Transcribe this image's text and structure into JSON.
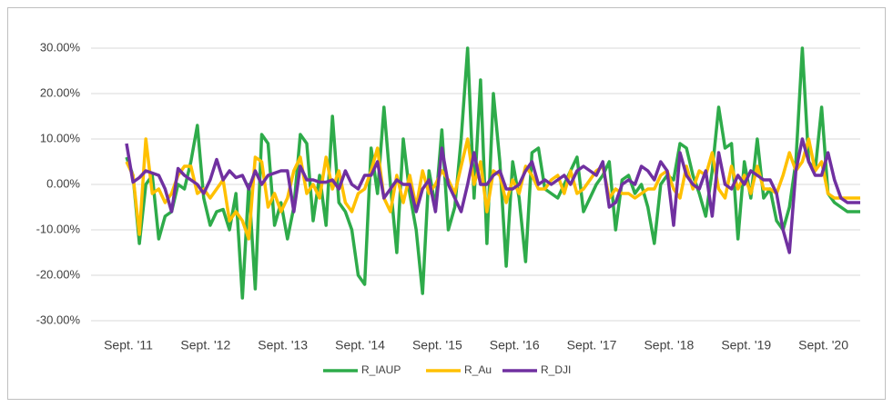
{
  "chart_data": {
    "type": "line",
    "categories": [
      "Sept. '11",
      null,
      null,
      null,
      null,
      null,
      null,
      null,
      null,
      null,
      null,
      null,
      "Sept. '12",
      null,
      null,
      null,
      null,
      null,
      null,
      null,
      null,
      null,
      null,
      null,
      "Sept. '13",
      null,
      null,
      null,
      null,
      null,
      null,
      null,
      null,
      null,
      null,
      null,
      "Sept. '14",
      null,
      null,
      null,
      null,
      null,
      null,
      null,
      null,
      null,
      null,
      null,
      "Sept. '15",
      null,
      null,
      null,
      null,
      null,
      null,
      null,
      null,
      null,
      null,
      null,
      "Sept. '16",
      null,
      null,
      null,
      null,
      null,
      null,
      null,
      null,
      null,
      null,
      null,
      "Sept. '17",
      null,
      null,
      null,
      null,
      null,
      null,
      null,
      null,
      null,
      null,
      null,
      "Sept. '18",
      null,
      null,
      null,
      null,
      null,
      null,
      null,
      null,
      null,
      null,
      null,
      "Sept. '19",
      null,
      null,
      null,
      null,
      null,
      null,
      null,
      null,
      null,
      null,
      null,
      "Sept. '20",
      null,
      null,
      null,
      null,
      null,
      null
    ],
    "series": [
      {
        "name": "R_IAUP",
        "color": "#2eab4a",
        "values": [
          6,
          2,
          -13,
          0,
          2,
          -12,
          -7,
          -6,
          0,
          -1,
          5,
          13,
          -3,
          -9,
          -6,
          -5.5,
          -10,
          -2,
          -25,
          0,
          -23,
          11,
          9,
          -9,
          -4,
          -12,
          -5,
          11,
          9,
          -8,
          2,
          -9,
          15,
          -4,
          -6,
          -10,
          -20,
          -22,
          8,
          -2,
          17,
          0,
          -15,
          10,
          -2,
          -10,
          -24,
          3,
          -5,
          12,
          -10,
          -5,
          10,
          30,
          -3,
          23,
          -13,
          20,
          5,
          -18,
          5,
          -3,
          -17,
          7,
          8,
          -1,
          -2,
          -3,
          0,
          3,
          6,
          -6,
          -3,
          0,
          2,
          5,
          -10,
          1,
          2,
          -2,
          0,
          -5,
          -13,
          0,
          2,
          1,
          9,
          8,
          2,
          -2,
          -7,
          3,
          17,
          8,
          9,
          -12,
          5,
          -3,
          10,
          -3,
          -1,
          -8,
          -10,
          -5,
          5,
          30,
          5,
          3,
          17,
          -2,
          -4,
          -5,
          -6,
          -6,
          -6
        ]
      },
      {
        "name": "R_Au",
        "color": "#ffc000",
        "values": [
          5,
          2,
          -11,
          10,
          -2,
          -1,
          -4,
          -2,
          2,
          4,
          4,
          -2,
          -1,
          -3,
          -1,
          1,
          -8,
          -6,
          -8,
          -12,
          6,
          5,
          -5,
          -2,
          -6,
          -3,
          3,
          6,
          -2,
          0,
          -3,
          6,
          -1,
          3,
          -4,
          -6,
          -2,
          -1,
          3,
          8,
          -3,
          -6,
          2,
          -4,
          2,
          -5,
          3,
          -2,
          0,
          3,
          1,
          -2,
          4,
          10,
          0,
          5,
          -6,
          3,
          2,
          -4,
          1,
          -2,
          4,
          2,
          -1,
          -1,
          1,
          2,
          -2,
          3,
          -2,
          -1,
          1,
          3,
          4,
          -3,
          -1,
          -2,
          -2,
          -3,
          -2,
          -1,
          -1,
          2,
          3,
          -1,
          -3,
          4,
          -1,
          3,
          2,
          7,
          -1,
          -3,
          4,
          -1,
          2,
          -2,
          4,
          -1,
          -1,
          -2,
          2,
          7,
          3,
          5,
          10,
          3,
          5,
          -2,
          -3,
          -3,
          -3,
          -3,
          -3
        ]
      },
      {
        "name": "R_DJI",
        "color": "#7030a0",
        "values": [
          9,
          0.5,
          1.5,
          3,
          2.5,
          2,
          -1,
          -6,
          3.5,
          2,
          1,
          0,
          -2,
          1,
          5.5,
          1,
          3,
          1.5,
          2,
          -1,
          3,
          0,
          2,
          2.5,
          3,
          3,
          -6,
          4,
          1,
          1,
          0.5,
          0.5,
          1,
          -1,
          3,
          0,
          -1,
          2,
          2,
          5,
          -3,
          -1,
          1,
          0,
          0,
          -6,
          -1,
          1,
          -6,
          8,
          0,
          -3,
          -6,
          0,
          7,
          0,
          0,
          2,
          3,
          -1,
          -1,
          0,
          3,
          5,
          0,
          1,
          0,
          1,
          2,
          0,
          3,
          4,
          3,
          2,
          5,
          -5,
          -4,
          0,
          1,
          0,
          4,
          3,
          1,
          5,
          3,
          -9,
          7,
          2,
          0,
          -1,
          3,
          -7,
          7,
          0,
          -1,
          2,
          0,
          3,
          2,
          1,
          1,
          -2,
          -10,
          -15,
          3,
          10,
          5,
          2,
          2,
          7,
          1,
          -3,
          -4,
          -4,
          -4
        ]
      }
    ],
    "ylim": [
      -30,
      30
    ],
    "yticks": [
      {
        "value": -30,
        "label": "-30.00%"
      },
      {
        "value": -20,
        "label": "-20.00%"
      },
      {
        "value": -10,
        "label": "-10.00%"
      },
      {
        "value": 0,
        "label": "0.00%"
      },
      {
        "value": 10,
        "label": "10.00%"
      },
      {
        "value": 20,
        "label": "20.00%"
      },
      {
        "value": 30,
        "label": "30.00%"
      }
    ],
    "grid": true,
    "legend": "bottom"
  }
}
